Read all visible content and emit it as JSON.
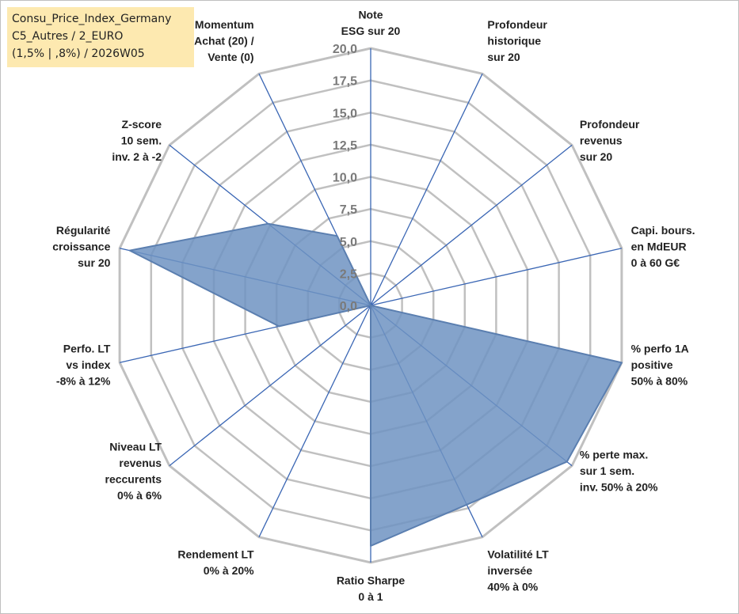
{
  "info_box": {
    "line1": "Consu_Price_Index_Germany",
    "line2": "C5_Autres / 2_EURO",
    "line3": "(1,5% | ,8%) / 2026W05"
  },
  "colors": {
    "grid": "#c0c0c0",
    "spoke": "#3a66b4",
    "fill": "#6f93c2",
    "stroke": "#5b7fb0",
    "text": "#222222",
    "tick_text": "#7a7a7a",
    "info_bg": "#fde9b0"
  },
  "chart_data": {
    "type": "radar",
    "title": "",
    "range": [
      0,
      20
    ],
    "grid_step": 2.5,
    "ticks": [
      "0,0",
      "2,5",
      "5,0",
      "7,5",
      "10,0",
      "12,5",
      "15,0",
      "17,5",
      "20,0"
    ],
    "axes": [
      [
        "Note",
        "ESG sur 20"
      ],
      [
        "Profondeur",
        "historique",
        "sur 20"
      ],
      [
        "Profondeur",
        "revenus",
        "sur 20"
      ],
      [
        "Capi. bours.",
        "en MdEUR",
        "0 à 60 G€"
      ],
      [
        "% perfo 1A",
        "positive",
        "50% à 80%"
      ],
      [
        "% perte max.",
        "sur 1 sem.",
        "inv. 50% à 20%"
      ],
      [
        "Volatilité LT",
        "inversée",
        "40% à 0%"
      ],
      [
        "Ratio Sharpe",
        "0 à 1"
      ],
      [
        "Rendement LT",
        "0% à 20%"
      ],
      [
        "Niveau LT",
        "revenus",
        "reccurents",
        "0% à 6%"
      ],
      [
        "Perfo. LT",
        "vs index",
        "-8% à 12%"
      ],
      [
        "Régularité",
        "croissance",
        "sur 20"
      ],
      [
        "Z-score",
        "10 sem.",
        "inv. 2 à -2"
      ],
      [
        "Momentum",
        "Achat (20) /",
        "Vente (0)"
      ]
    ],
    "series": [
      {
        "name": "Consu_Price_Index_Germany",
        "values": [
          0,
          0,
          0,
          0,
          20,
          19.5,
          17.2,
          18.7,
          0,
          0,
          7.3,
          19.2,
          10.2,
          6
        ]
      }
    ]
  }
}
